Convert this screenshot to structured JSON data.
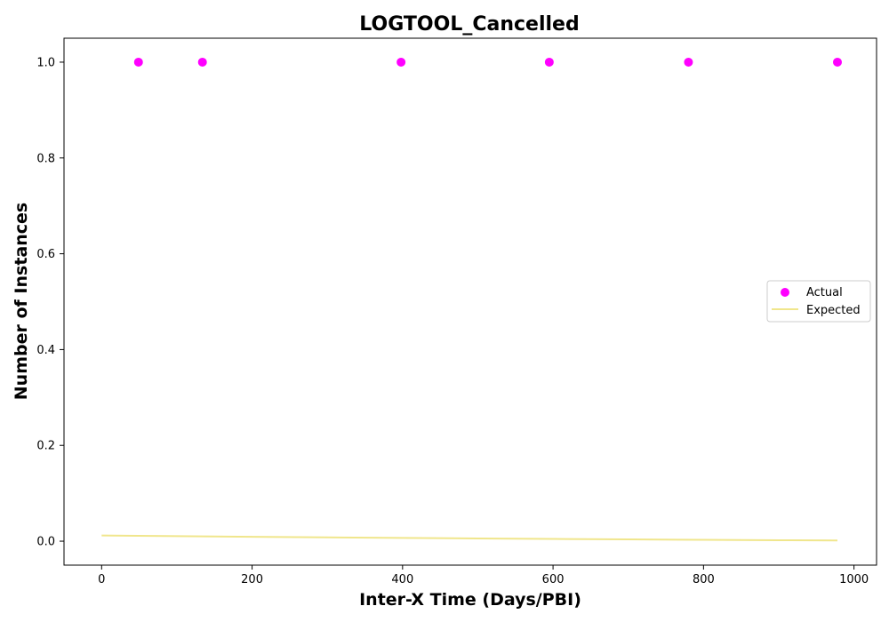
{
  "chart_data": {
    "type": "scatter",
    "title": "LOGTOOL_Cancelled",
    "xlabel": "Inter-X Time (Days/PBI)",
    "ylabel": "Number of Instances",
    "xlim": [
      -50,
      1030
    ],
    "ylim": [
      -0.05,
      1.05
    ],
    "xticks": [
      0,
      200,
      400,
      600,
      800,
      1000
    ],
    "xtick_labels": [
      "0",
      "200",
      "400",
      "600",
      "800",
      "1000"
    ],
    "yticks": [
      0.0,
      0.2,
      0.4,
      0.6,
      0.8,
      1.0
    ],
    "ytick_labels": [
      "0.0",
      "0.2",
      "0.4",
      "0.6",
      "0.8",
      "1.0"
    ],
    "grid": false,
    "legend_position": "center-right",
    "series": [
      {
        "name": "Actual",
        "kind": "scatter",
        "color": "#ff00ff",
        "x": [
          49,
          134,
          398,
          595,
          780,
          978
        ],
        "y": [
          1,
          1,
          1,
          1,
          1,
          1
        ]
      },
      {
        "name": "Expected",
        "kind": "line",
        "color": "#f0e68c",
        "x": [
          0,
          100,
          200,
          300,
          400,
          500,
          600,
          700,
          800,
          900,
          978
        ],
        "y": [
          0.012,
          0.0105,
          0.0092,
          0.008,
          0.0068,
          0.0057,
          0.0047,
          0.0037,
          0.0028,
          0.002,
          0.0014
        ]
      }
    ]
  }
}
